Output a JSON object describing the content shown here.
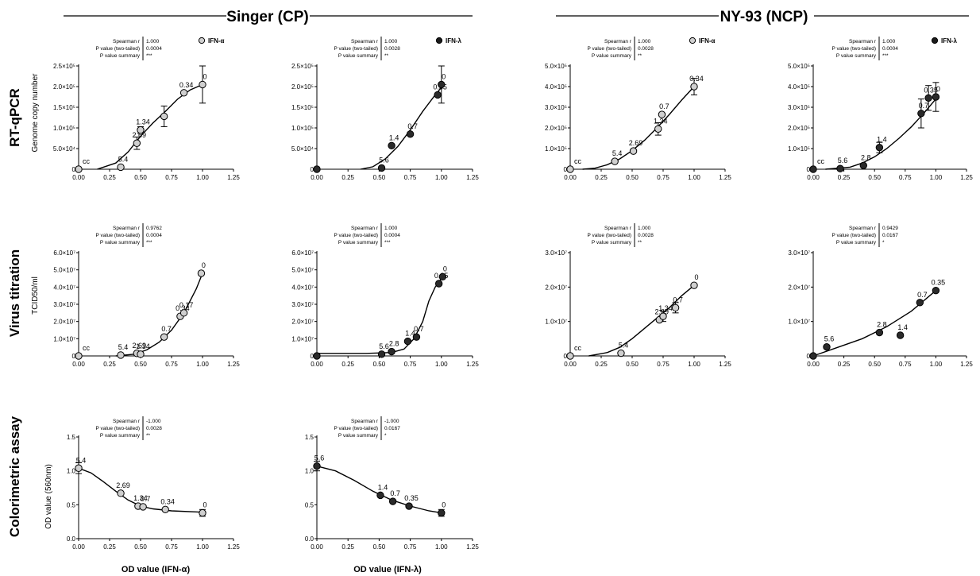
{
  "figure": {
    "headers": [
      "Singer (CP)",
      "NY-93 (NCP)"
    ],
    "row_titles": [
      "RT-qPCR",
      "Virus titration",
      "Colorimetric assay"
    ],
    "row_ylabels": [
      "Genome copy number",
      "TCID50/ml",
      "OD value (560nm)"
    ],
    "x_axis_titles": [
      "OD value (IFN-α)",
      "OD value (IFN-λ)"
    ],
    "stats_labels": [
      "Spearman r",
      "P value (two-tailed)",
      "P value summary"
    ]
  },
  "chart_data": [
    {
      "type": "scatter",
      "row": 0,
      "col": 0,
      "legend": "IFN-α",
      "marker": "open",
      "stats": [
        "1.000",
        "0.0004",
        "***"
      ],
      "xlim": [
        0,
        1.25
      ],
      "xticks": [
        "0.00",
        "0.25",
        "0.50",
        "0.75",
        "1.00",
        "1.25"
      ],
      "ylim": [
        0,
        250000
      ],
      "yticks": [
        "0",
        "5.0×10⁴",
        "1.0×10⁵",
        "1.5×10⁵",
        "2.0×10⁵",
        "2.5×10⁵"
      ],
      "points": [
        {
          "x": 0.0,
          "y": 0,
          "label": "cc"
        },
        {
          "x": 0.34,
          "y": 5000,
          "label": "5.4"
        },
        {
          "x": 0.47,
          "y": 63000,
          "err": 15000,
          "label": "2.69"
        },
        {
          "x": 0.5,
          "y": 95000,
          "err": 8000,
          "label": "1.34"
        },
        {
          "x": 0.69,
          "y": 128000,
          "err": 25000,
          "label": ""
        },
        {
          "x": 0.85,
          "y": 185000,
          "label": "0.34"
        },
        {
          "x": 1.0,
          "y": 205000,
          "err": 45000,
          "label": "0"
        }
      ],
      "curve": [
        [
          0.15,
          0
        ],
        [
          0.3,
          15000
        ],
        [
          0.4,
          42000
        ],
        [
          0.5,
          80000
        ],
        [
          0.6,
          112000
        ],
        [
          0.7,
          140000
        ],
        [
          0.8,
          170000
        ],
        [
          0.9,
          192000
        ],
        [
          1.0,
          205000
        ]
      ]
    },
    {
      "type": "scatter",
      "row": 0,
      "col": 1,
      "legend": "IFN-λ",
      "marker": "filled",
      "stats": [
        "1.000",
        "0.0028",
        "**"
      ],
      "xlim": [
        0,
        1.25
      ],
      "xticks": [
        "0.00",
        "0.25",
        "0.50",
        "0.75",
        "1.00",
        "1.25"
      ],
      "ylim": [
        0,
        250000
      ],
      "yticks": [
        "0",
        "5.0×10⁴",
        "1.0×10⁵",
        "1.5×10⁵",
        "2.0×10⁵",
        "2.5×10⁵"
      ],
      "points": [
        {
          "x": 0.0,
          "y": 0,
          "label": ""
        },
        {
          "x": 0.52,
          "y": 3000,
          "label": "5.6"
        },
        {
          "x": 0.6,
          "y": 57000,
          "label": "1.4"
        },
        {
          "x": 0.75,
          "y": 85000,
          "label": "0.7"
        },
        {
          "x": 0.97,
          "y": 180000,
          "label": "0.35"
        },
        {
          "x": 1.0,
          "y": 205000,
          "err": 45000,
          "label": "0"
        }
      ],
      "curve": [
        [
          0.35,
          0
        ],
        [
          0.45,
          6000
        ],
        [
          0.55,
          25000
        ],
        [
          0.65,
          55000
        ],
        [
          0.75,
          95000
        ],
        [
          0.85,
          140000
        ],
        [
          0.95,
          180000
        ],
        [
          1.02,
          205000
        ]
      ]
    },
    {
      "type": "scatter",
      "row": 0,
      "col": 2,
      "legend": "IFN-α",
      "marker": "open",
      "stats": [
        "1.000",
        "0.0028",
        "**"
      ],
      "xlim": [
        0,
        1.25
      ],
      "xticks": [
        "0.00",
        "0.25",
        "0.50",
        "0.75",
        "1.00",
        "1.25"
      ],
      "ylim": [
        0,
        500000
      ],
      "yticks": [
        "0",
        "1.0×10⁵",
        "2.0×10⁵",
        "3.0×10⁵",
        "4.0×10⁵",
        "5.0×10⁵"
      ],
      "points": [
        {
          "x": 0.0,
          "y": 0,
          "label": "cc"
        },
        {
          "x": 0.36,
          "y": 38000,
          "label": "5.4"
        },
        {
          "x": 0.51,
          "y": 88000,
          "label": "2.69"
        },
        {
          "x": 0.71,
          "y": 195000,
          "err": 30000,
          "label": "1.34"
        },
        {
          "x": 0.74,
          "y": 265000,
          "label": "0.7"
        },
        {
          "x": 1.0,
          "y": 400000,
          "err": 40000,
          "label": "0.34"
        }
      ],
      "curve": [
        [
          0.1,
          0
        ],
        [
          0.2,
          5000
        ],
        [
          0.3,
          22000
        ],
        [
          0.4,
          50000
        ],
        [
          0.5,
          90000
        ],
        [
          0.6,
          140000
        ],
        [
          0.7,
          200000
        ],
        [
          0.8,
          265000
        ],
        [
          0.9,
          335000
        ],
        [
          1.0,
          400000
        ]
      ]
    },
    {
      "type": "scatter",
      "row": 0,
      "col": 3,
      "legend": "IFN-λ",
      "marker": "filled",
      "stats": [
        "1.000",
        "0.0004",
        "***"
      ],
      "xlim": [
        0,
        1.25
      ],
      "xticks": [
        "0.00",
        "0.25",
        "0.50",
        "0.75",
        "1.00",
        "1.25"
      ],
      "ylim": [
        0,
        500000
      ],
      "yticks": [
        "0",
        "1.0×10⁵",
        "2.0×10⁵",
        "3.0×10⁵",
        "4.0×10⁵",
        "5.0×10⁵"
      ],
      "points": [
        {
          "x": 0.0,
          "y": 0,
          "label": "cc"
        },
        {
          "x": 0.22,
          "y": 3000,
          "label": "5.6"
        },
        {
          "x": 0.41,
          "y": 18000,
          "label": "2.8"
        },
        {
          "x": 0.54,
          "y": 105000,
          "err": 25000,
          "label": "1.4"
        },
        {
          "x": 0.88,
          "y": 270000,
          "err": 70000,
          "label": "0.7"
        },
        {
          "x": 0.94,
          "y": 345000,
          "err": 60000,
          "label": "0.35"
        },
        {
          "x": 1.0,
          "y": 350000,
          "err": 70000,
          "label": "0"
        }
      ],
      "curve": [
        [
          0.1,
          0
        ],
        [
          0.3,
          10000
        ],
        [
          0.4,
          30000
        ],
        [
          0.5,
          60000
        ],
        [
          0.6,
          100000
        ],
        [
          0.7,
          150000
        ],
        [
          0.8,
          205000
        ],
        [
          0.9,
          270000
        ],
        [
          1.0,
          340000
        ]
      ]
    },
    {
      "type": "scatter",
      "row": 1,
      "col": 0,
      "legend": "",
      "marker": "open",
      "stats": [
        "0.9762",
        "0.0004",
        "***"
      ],
      "xlim": [
        0,
        1.25
      ],
      "xticks": [
        "0.00",
        "0.25",
        "0.50",
        "0.75",
        "1.00",
        "1.25"
      ],
      "ylim": [
        0,
        60000000
      ],
      "yticks": [
        "0",
        "1.0×10⁷",
        "2.0×10⁷",
        "3.0×10⁷",
        "4.0×10⁷",
        "5.0×10⁷",
        "6.0×10⁷"
      ],
      "points": [
        {
          "x": 0.0,
          "y": 0,
          "label": "cc"
        },
        {
          "x": 0.34,
          "y": 500000,
          "label": "5.4"
        },
        {
          "x": 0.47,
          "y": 1500000,
          "label": "2.69"
        },
        {
          "x": 0.5,
          "y": 1000000,
          "label": "1.34"
        },
        {
          "x": 0.69,
          "y": 11000000,
          "label": "0.7"
        },
        {
          "x": 0.82,
          "y": 23000000,
          "label": "0.34"
        },
        {
          "x": 0.85,
          "y": 25000000,
          "label": "0.17"
        },
        {
          "x": 0.99,
          "y": 48000000,
          "label": "0"
        }
      ],
      "curve": [
        [
          0.3,
          0
        ],
        [
          0.45,
          1000000
        ],
        [
          0.55,
          3500000
        ],
        [
          0.65,
          8000000
        ],
        [
          0.75,
          15000000
        ],
        [
          0.85,
          25000000
        ],
        [
          0.95,
          39000000
        ],
        [
          1.0,
          48000000
        ]
      ]
    },
    {
      "type": "scatter",
      "row": 1,
      "col": 1,
      "legend": "",
      "marker": "filled",
      "stats": [
        "1.000",
        "0.0004",
        "***"
      ],
      "xlim": [
        0,
        1.25
      ],
      "xticks": [
        "0.00",
        "0.25",
        "0.50",
        "0.75",
        "1.00",
        "1.25"
      ],
      "ylim": [
        0,
        60000000
      ],
      "yticks": [
        "0",
        "1.0×10⁷",
        "2.0×10⁷",
        "3.0×10⁷",
        "4.0×10⁷",
        "5.0×10⁷",
        "6.0×10⁷"
      ],
      "points": [
        {
          "x": 0.0,
          "y": 0,
          "label": ""
        },
        {
          "x": 0.52,
          "y": 1000000,
          "label": "5.6"
        },
        {
          "x": 0.6,
          "y": 2500000,
          "label": "2.8"
        },
        {
          "x": 0.73,
          "y": 8500000,
          "label": "1.4"
        },
        {
          "x": 0.8,
          "y": 11000000,
          "label": "0.7"
        },
        {
          "x": 0.98,
          "y": 42000000,
          "label": "0.35"
        },
        {
          "x": 1.01,
          "y": 46000000,
          "label": "0"
        }
      ],
      "curve": [
        [
          0.0,
          1500000
        ],
        [
          0.4,
          1500000
        ],
        [
          0.6,
          2000000
        ],
        [
          0.7,
          4000000
        ],
        [
          0.78,
          10000000
        ],
        [
          0.85,
          20000000
        ],
        [
          0.9,
          32000000
        ],
        [
          0.95,
          40000000
        ],
        [
          1.0,
          45000000
        ]
      ]
    },
    {
      "type": "scatter",
      "row": 1,
      "col": 2,
      "legend": "",
      "marker": "open",
      "stats": [
        "1.000",
        "0.0028",
        "**"
      ],
      "xlim": [
        0,
        1.25
      ],
      "xticks": [
        "0.00",
        "0.25",
        "0.50",
        "0.75",
        "1.00",
        "1.25"
      ],
      "ylim": [
        0,
        30000000
      ],
      "yticks": [
        "0",
        "1.0×10⁷",
        "2.0×10⁷",
        "3.0×10⁷"
      ],
      "points": [
        {
          "x": 0.0,
          "y": 0,
          "label": "cc"
        },
        {
          "x": 0.41,
          "y": 800000,
          "label": "5.4"
        },
        {
          "x": 0.72,
          "y": 10500000,
          "label": "2.69"
        },
        {
          "x": 0.75,
          "y": 11500000,
          "err": 1500000,
          "label": "1.34"
        },
        {
          "x": 0.85,
          "y": 14000000,
          "err": 1500000,
          "label": "0.7"
        },
        {
          "x": 1.0,
          "y": 20500000,
          "label": "0"
        }
      ],
      "curve": [
        [
          0.15,
          0
        ],
        [
          0.3,
          1000000
        ],
        [
          0.4,
          2500000
        ],
        [
          0.5,
          5000000
        ],
        [
          0.6,
          8000000
        ],
        [
          0.7,
          11000000
        ],
        [
          0.8,
          14000000
        ],
        [
          0.9,
          17500000
        ],
        [
          1.0,
          20500000
        ]
      ]
    },
    {
      "type": "scatter",
      "row": 1,
      "col": 3,
      "legend": "",
      "marker": "filled",
      "stats": [
        "0.9429",
        "0.0167",
        "*"
      ],
      "xlim": [
        0,
        1.25
      ],
      "xticks": [
        "0.00",
        "0.25",
        "0.50",
        "0.75",
        "1.00",
        "1.25"
      ],
      "ylim": [
        0,
        30000000
      ],
      "yticks": [
        "0",
        "1.0×10⁷",
        "2.0×10⁷",
        "3.0×10⁷"
      ],
      "points": [
        {
          "x": 0.0,
          "y": 0,
          "label": ""
        },
        {
          "x": 0.11,
          "y": 2600000,
          "label": "5.6"
        },
        {
          "x": 0.54,
          "y": 6800000,
          "label": "2.8"
        },
        {
          "x": 0.71,
          "y": 6000000,
          "label": "1.4"
        },
        {
          "x": 0.87,
          "y": 15500000,
          "label": "0.7"
        },
        {
          "x": 1.0,
          "y": 19000000,
          "label": "0.35"
        }
      ],
      "curve": [
        [
          0.0,
          0
        ],
        [
          0.2,
          2500000
        ],
        [
          0.4,
          5000000
        ],
        [
          0.6,
          8500000
        ],
        [
          0.8,
          13000000
        ],
        [
          1.0,
          19000000
        ]
      ]
    },
    {
      "type": "scatter",
      "row": 2,
      "col": 0,
      "legend": "",
      "marker": "open",
      "stats": [
        "-1.000",
        "0.0028",
        "**"
      ],
      "xlim": [
        0,
        1.25
      ],
      "xticks": [
        "0.00",
        "0.25",
        "0.50",
        "0.75",
        "1.00",
        "1.25"
      ],
      "ylim": [
        0,
        1.5
      ],
      "yticks": [
        "0.0",
        "0.5",
        "1.0",
        "1.5"
      ],
      "points": [
        {
          "x": 0.0,
          "y": 1.04,
          "err": 0.08,
          "label": "5.4"
        },
        {
          "x": 0.34,
          "y": 0.67,
          "label": "2.69"
        },
        {
          "x": 0.48,
          "y": 0.48,
          "label": "1.34"
        },
        {
          "x": 0.52,
          "y": 0.47,
          "label": "0.7"
        },
        {
          "x": 0.7,
          "y": 0.43,
          "label": "0.34"
        },
        {
          "x": 1.0,
          "y": 0.38,
          "err": 0.05,
          "label": "0"
        }
      ],
      "curve": [
        [
          0.0,
          1.04
        ],
        [
          0.1,
          0.97
        ],
        [
          0.2,
          0.84
        ],
        [
          0.3,
          0.7
        ],
        [
          0.4,
          0.57
        ],
        [
          0.5,
          0.48
        ],
        [
          0.6,
          0.44
        ],
        [
          0.75,
          0.41
        ],
        [
          1.0,
          0.39
        ]
      ]
    },
    {
      "type": "scatter",
      "row": 2,
      "col": 1,
      "legend": "",
      "marker": "filled",
      "stats": [
        "-1.000",
        "0.0167",
        "*"
      ],
      "xlim": [
        0,
        1.25
      ],
      "xticks": [
        "0.00",
        "0.25",
        "0.50",
        "0.75",
        "1.00",
        "1.25"
      ],
      "ylim": [
        0,
        1.5
      ],
      "yticks": [
        "0.0",
        "0.5",
        "1.0",
        "1.5"
      ],
      "points": [
        {
          "x": 0.0,
          "y": 1.07,
          "err": 0.07,
          "label": "5.6"
        },
        {
          "x": 0.51,
          "y": 0.64,
          "label": "1.4"
        },
        {
          "x": 0.61,
          "y": 0.55,
          "label": "0.7"
        },
        {
          "x": 0.74,
          "y": 0.48,
          "label": "0.35"
        },
        {
          "x": 1.0,
          "y": 0.38,
          "err": 0.05,
          "label": "0"
        }
      ],
      "curve": [
        [
          0.0,
          1.07
        ],
        [
          0.15,
          1.0
        ],
        [
          0.3,
          0.86
        ],
        [
          0.45,
          0.7
        ],
        [
          0.6,
          0.57
        ],
        [
          0.75,
          0.48
        ],
        [
          0.9,
          0.41
        ],
        [
          1.0,
          0.38
        ]
      ]
    }
  ]
}
